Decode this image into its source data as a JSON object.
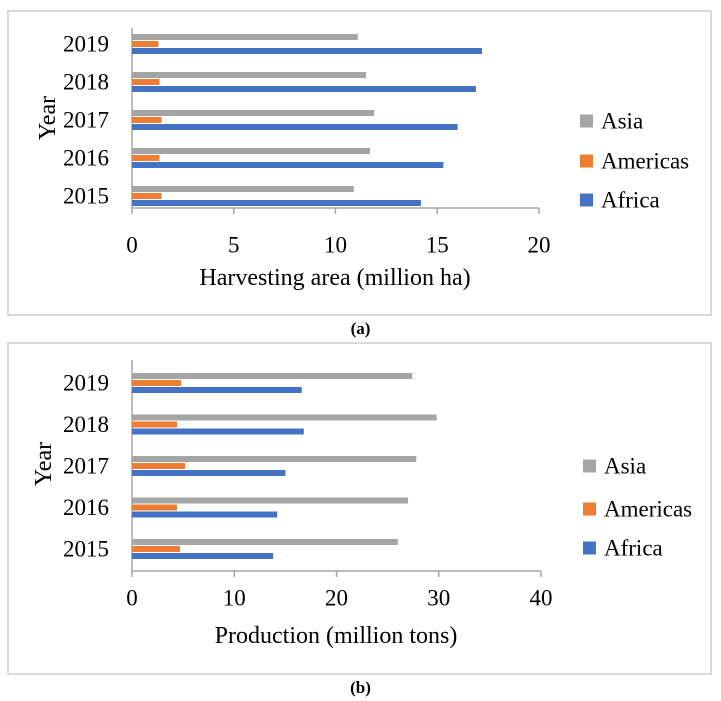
{
  "captions": {
    "a": "(a)",
    "b": "(b)"
  },
  "colors": {
    "asia": "#A5A5A5",
    "americas": "#ED7D31",
    "africa": "#4472C4",
    "axis_line": "#A6A6A6",
    "panel_border": "#D9D9D9"
  },
  "chart_data": [
    {
      "id": "chart-a",
      "type": "bar",
      "orientation": "horizontal",
      "xlabel": "Harvesting area (million ha)",
      "ylabel": "Year",
      "categories": [
        "2019",
        "2018",
        "2017",
        "2016",
        "2015"
      ],
      "xlim": [
        0,
        20
      ],
      "xticks": [
        0,
        5,
        10,
        15,
        20
      ],
      "grid": false,
      "legend_position": "right",
      "legend": [
        "Asia",
        "Americas",
        "Africa"
      ],
      "series": [
        {
          "name": "Asia",
          "color": "#A5A5A5",
          "values": [
            11.1,
            11.5,
            11.9,
            11.7,
            10.9
          ]
        },
        {
          "name": "Americas",
          "color": "#ED7D31",
          "values": [
            1.3,
            1.35,
            1.45,
            1.35,
            1.45
          ]
        },
        {
          "name": "Africa",
          "color": "#4472C4",
          "values": [
            17.2,
            16.9,
            16.0,
            15.3,
            14.2
          ]
        }
      ]
    },
    {
      "id": "chart-b",
      "type": "bar",
      "orientation": "horizontal",
      "xlabel": "Production (million tons)",
      "ylabel": "Year",
      "categories": [
        "2019",
        "2018",
        "2017",
        "2016",
        "2015"
      ],
      "xlim": [
        0,
        40
      ],
      "xticks": [
        0,
        10,
        20,
        30,
        40
      ],
      "grid": false,
      "legend_position": "right",
      "legend": [
        "Asia",
        "Americas",
        "Africa"
      ],
      "series": [
        {
          "name": "Asia",
          "color": "#A5A5A5",
          "values": [
            27.4,
            29.8,
            27.8,
            27.0,
            26.0
          ]
        },
        {
          "name": "Americas",
          "color": "#ED7D31",
          "values": [
            4.8,
            4.4,
            5.2,
            4.4,
            4.7
          ]
        },
        {
          "name": "Africa",
          "color": "#4472C4",
          "values": [
            16.6,
            16.8,
            15.0,
            14.2,
            13.8
          ]
        }
      ]
    }
  ]
}
